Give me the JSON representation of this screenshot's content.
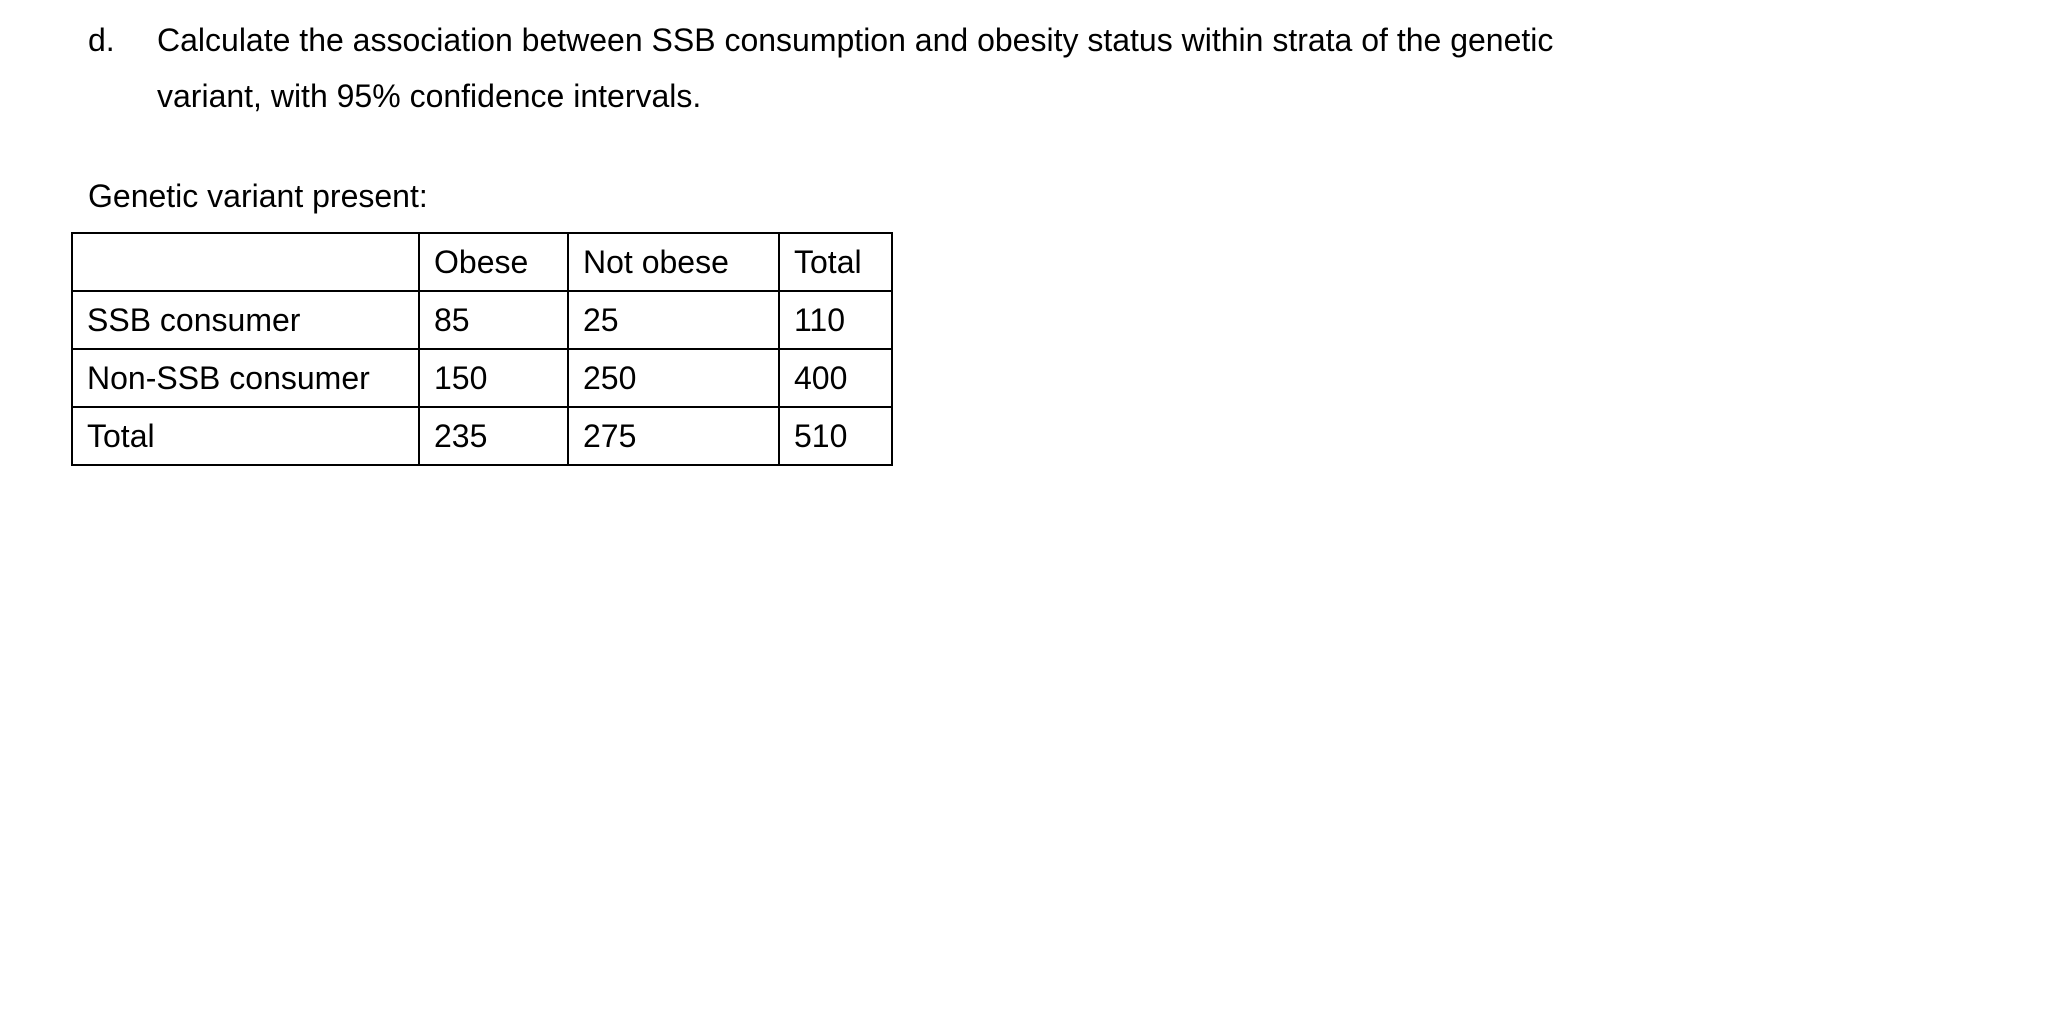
{
  "page": {
    "background": "#ffffff",
    "text_color": "#000000"
  },
  "question": {
    "label": "d.",
    "line1": "Calculate the association between SSB consumption and obesity status within strata of the genetic",
    "line2": "variant, with 95% confidence intervals."
  },
  "stratum": {
    "caption": "Genetic variant present:"
  },
  "table": {
    "header": [
      "",
      "Obese",
      "Not obese",
      "Total"
    ],
    "rows": [
      {
        "label": "SSB consumer",
        "obese": "85",
        "not_obese": "25",
        "total": "110"
      },
      {
        "label": "Non-SSB consumer",
        "obese": "150",
        "not_obese": "250",
        "total": "400"
      },
      {
        "label": "Total",
        "obese": "235",
        "not_obese": "275",
        "total": "510"
      }
    ]
  }
}
